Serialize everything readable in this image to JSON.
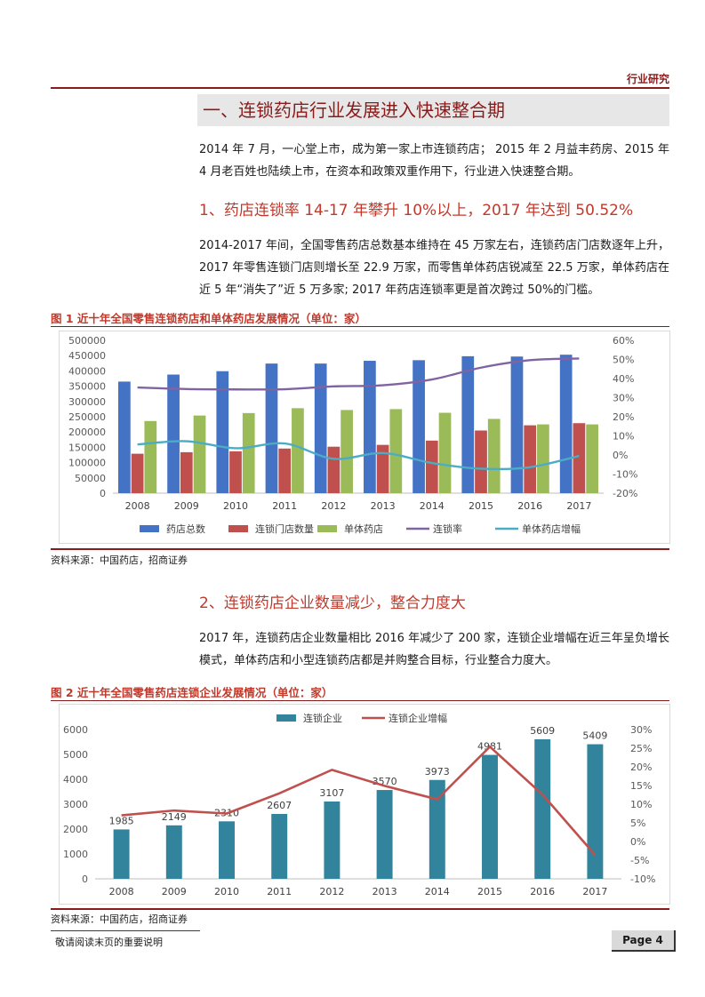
{
  "header": {
    "category": "行业研究"
  },
  "section": {
    "title": "一、连锁药店行业发展进入快速整合期"
  },
  "intro": {
    "paragraph": "2014 年 7 月，一心堂上市，成为第一家上市连锁药店； 2015 年 2 月益丰药房、2015 年 4 月老百姓也陆续上市，在资本和政策双重作用下，行业进入快速整合期。"
  },
  "sub1": {
    "title": "1、药店连锁率 14-17 年攀升 10%以上，2017 年达到 50.52%",
    "paragraph": "2014-2017 年间，全国零售药店总数基本维持在 45 万家左右，连锁药店门店数逐年上升，2017 年零售连锁门店则增长至 22.9 万家，而零售单体药店锐减至 22.5 万家，单体药店在近 5 年“消失了”近 5 万多家; 2017 年药店连锁率更是首次跨过 50%的门槛。"
  },
  "fig1": {
    "caption": "图 1 近十年全国零售连锁药店和单体药店发展情况（单位：家）",
    "source": "资料来源：中国药店，招商证券"
  },
  "sub2": {
    "title": "2、连锁药店企业数量减少，整合力度大",
    "paragraph": "2017 年，连锁药店企业数量相比 2016 年减少了 200 家，连锁企业增幅在近三年呈负增长模式，单体药店和小型连锁药店都是并购整合目标，行业整合力度大。"
  },
  "fig2": {
    "caption": "图 2 近十年全国零售药店连锁企业发展情况（单位：家）",
    "source": "资料来源：中国药店，招商证券"
  },
  "footer": {
    "note": "敬请阅读末页的重要说明",
    "page": "Page 4"
  },
  "chart_data": [
    {
      "type": "bar",
      "categories": [
        "2008",
        "2009",
        "2010",
        "2011",
        "2012",
        "2013",
        "2014",
        "2015",
        "2016",
        "2017"
      ],
      "series": [
        {
          "name": "药店总数",
          "kind": "bar",
          "axis": "left",
          "color": "#4472c4",
          "values": [
            365000,
            388000,
            399000,
            424000,
            424000,
            433000,
            435000,
            448000,
            447000,
            453000
          ]
        },
        {
          "name": "连锁门店数量",
          "kind": "bar",
          "axis": "left",
          "color": "#c0504d",
          "values": [
            129000,
            134000,
            137000,
            146000,
            152000,
            158000,
            172000,
            205000,
            222000,
            229000
          ]
        },
        {
          "name": "单体药店",
          "kind": "bar",
          "axis": "left",
          "color": "#9bbb59",
          "values": [
            236000,
            254000,
            262000,
            278000,
            272000,
            275000,
            263000,
            243000,
            225000,
            225000
          ]
        },
        {
          "name": "连锁率",
          "kind": "line",
          "axis": "right",
          "color": "#8064a2",
          "values": [
            35.3,
            34.5,
            34.3,
            34.4,
            35.9,
            36.5,
            39.5,
            45.7,
            49.6,
            50.5
          ]
        },
        {
          "name": "单体药店增幅",
          "kind": "line",
          "axis": "right",
          "color": "#4bacc6",
          "values": [
            5.5,
            7.2,
            3.5,
            6.0,
            -2.0,
            1.0,
            -4.2,
            -7.2,
            -6.4,
            -0.5
          ]
        }
      ],
      "yticks_left": [
        "500000",
        "450000",
        "400000",
        "350000",
        "300000",
        "250000",
        "200000",
        "150000",
        "100000",
        "50000",
        "0"
      ],
      "yticks_right": [
        "60%",
        "50%",
        "40%",
        "30%",
        "20%",
        "10%",
        "0%",
        "-10%",
        "-20%"
      ],
      "ylim_left": [
        0,
        500000
      ],
      "ylim_right": [
        -20,
        60
      ],
      "legend": "bottom",
      "grid": false
    },
    {
      "type": "bar",
      "categories": [
        "2008",
        "2009",
        "2010",
        "2011",
        "2012",
        "2013",
        "2014",
        "2015",
        "2016",
        "2017"
      ],
      "series": [
        {
          "name": "连锁企业",
          "kind": "bar",
          "axis": "left",
          "color": "#31849b",
          "values": [
            1985,
            2149,
            2310,
            2607,
            3107,
            3570,
            3973,
            4981,
            5609,
            5409
          ],
          "labels": [
            "1985",
            "2149",
            "2310",
            "2607",
            "3107",
            "3570",
            "3973",
            "4981",
            "5609",
            "5409"
          ]
        },
        {
          "name": "连锁企业增幅",
          "kind": "line",
          "axis": "right",
          "color": "#c0504d",
          "values": [
            7.0,
            8.3,
            7.5,
            12.9,
            19.2,
            14.9,
            11.3,
            25.4,
            12.6,
            -3.6
          ]
        }
      ],
      "yticks_left": [
        "6000",
        "5000",
        "4000",
        "3000",
        "2000",
        "1000",
        "0"
      ],
      "yticks_right": [
        "30%",
        "25%",
        "20%",
        "15%",
        "10%",
        "5%",
        "0%",
        "-5%",
        "-10%"
      ],
      "ylim_left": [
        0,
        6000
      ],
      "ylim_right": [
        -10,
        30
      ],
      "legend": "top",
      "grid": false
    }
  ]
}
